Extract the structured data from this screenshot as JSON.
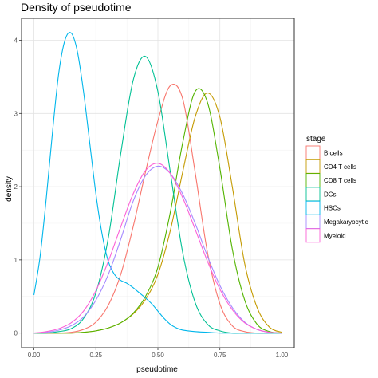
{
  "chart_data": {
    "type": "line",
    "title": "Density of pseudotime",
    "xlabel": "pseudotime",
    "ylabel": "density",
    "xlim": [
      -0.05,
      1.05
    ],
    "ylim": [
      -0.2,
      4.3
    ],
    "xticks": [
      0.0,
      0.25,
      0.5,
      0.75,
      1.0
    ],
    "xtick_labels": [
      "0.00",
      "0.25",
      "0.50",
      "0.75",
      "1.00"
    ],
    "yticks": [
      0,
      1,
      2,
      3,
      4
    ],
    "ytick_labels": [
      "0",
      "1",
      "2",
      "3",
      "4"
    ],
    "grid": true,
    "legend": {
      "title": "stage",
      "placement": "right"
    },
    "series": [
      {
        "name": "B cells",
        "color": "#F8766D",
        "x": [
          0.0,
          0.05,
          0.1,
          0.15,
          0.2,
          0.25,
          0.3,
          0.35,
          0.4,
          0.45,
          0.5,
          0.55,
          0.6,
          0.65,
          0.7,
          0.75,
          0.8,
          0.85,
          0.9,
          0.95,
          1.0
        ],
        "y": [
          0.0,
          0.0,
          0.0,
          0.01,
          0.05,
          0.15,
          0.38,
          0.8,
          1.45,
          2.2,
          2.9,
          3.38,
          3.2,
          2.2,
          1.1,
          0.4,
          0.1,
          0.02,
          0.0,
          0.0,
          0.0
        ]
      },
      {
        "name": "CD4 T cells",
        "color": "#C49A00",
        "x": [
          0.0,
          0.05,
          0.1,
          0.15,
          0.2,
          0.25,
          0.3,
          0.35,
          0.4,
          0.45,
          0.5,
          0.55,
          0.6,
          0.65,
          0.7,
          0.75,
          0.8,
          0.85,
          0.9,
          0.95,
          1.0
        ],
        "y": [
          0.0,
          0.0,
          0.0,
          0.0,
          0.01,
          0.03,
          0.07,
          0.14,
          0.26,
          0.46,
          0.8,
          1.4,
          2.2,
          2.95,
          3.28,
          2.95,
          2.0,
          0.95,
          0.35,
          0.08,
          0.01
        ]
      },
      {
        "name": "CD8 T cells",
        "color": "#53B400",
        "x": [
          0.0,
          0.05,
          0.1,
          0.15,
          0.2,
          0.25,
          0.3,
          0.35,
          0.4,
          0.45,
          0.5,
          0.55,
          0.6,
          0.65,
          0.7,
          0.75,
          0.8,
          0.85,
          0.9,
          0.95,
          1.0
        ],
        "y": [
          0.0,
          0.0,
          0.0,
          0.0,
          0.01,
          0.03,
          0.07,
          0.14,
          0.27,
          0.5,
          0.9,
          1.65,
          2.6,
          3.3,
          3.15,
          2.25,
          1.15,
          0.45,
          0.12,
          0.02,
          0.0
        ]
      },
      {
        "name": "DCs",
        "color": "#00C094",
        "x": [
          0.0,
          0.05,
          0.1,
          0.15,
          0.2,
          0.25,
          0.3,
          0.35,
          0.4,
          0.45,
          0.5,
          0.55,
          0.6,
          0.65,
          0.7,
          0.75,
          0.8,
          0.85,
          0.9,
          0.95,
          1.0
        ],
        "y": [
          0.0,
          0.0,
          0.02,
          0.06,
          0.2,
          0.55,
          1.3,
          2.45,
          3.45,
          3.78,
          3.3,
          2.2,
          1.1,
          0.42,
          0.12,
          0.03,
          0.0,
          0.0,
          0.0,
          0.0,
          0.0
        ]
      },
      {
        "name": "HSCs",
        "color": "#00B6EB",
        "x": [
          0.0,
          0.025,
          0.05,
          0.075,
          0.1,
          0.125,
          0.15,
          0.175,
          0.2,
          0.225,
          0.25,
          0.275,
          0.3,
          0.325,
          0.35,
          0.375,
          0.4,
          0.425,
          0.45,
          0.475,
          0.5,
          0.525,
          0.55,
          0.575,
          0.6,
          0.65,
          0.7,
          0.75,
          0.8,
          0.85,
          0.9,
          0.95,
          1.0
        ],
        "y": [
          0.52,
          1.05,
          1.85,
          2.75,
          3.55,
          4.0,
          4.1,
          3.85,
          3.3,
          2.6,
          1.9,
          1.35,
          0.98,
          0.8,
          0.72,
          0.68,
          0.62,
          0.55,
          0.48,
          0.4,
          0.3,
          0.2,
          0.12,
          0.07,
          0.04,
          0.02,
          0.01,
          0.0,
          0.0,
          0.0,
          0.0,
          0.0,
          0.0
        ]
      },
      {
        "name": "Megakaryocytic",
        "color": "#A58AFF",
        "x": [
          0.0,
          0.05,
          0.1,
          0.15,
          0.2,
          0.25,
          0.3,
          0.35,
          0.4,
          0.45,
          0.5,
          0.55,
          0.6,
          0.65,
          0.7,
          0.75,
          0.8,
          0.85,
          0.9,
          0.95,
          1.0
        ],
        "y": [
          0.0,
          0.01,
          0.04,
          0.1,
          0.22,
          0.45,
          0.8,
          1.28,
          1.8,
          2.15,
          2.28,
          2.18,
          1.9,
          1.5,
          1.05,
          0.65,
          0.35,
          0.15,
          0.05,
          0.01,
          0.0
        ]
      },
      {
        "name": "Myeloid",
        "color": "#FB61D7",
        "x": [
          0.0,
          0.05,
          0.1,
          0.15,
          0.2,
          0.25,
          0.3,
          0.35,
          0.4,
          0.45,
          0.5,
          0.55,
          0.6,
          0.65,
          0.7,
          0.75,
          0.8,
          0.85,
          0.9,
          0.95,
          1.0
        ],
        "y": [
          0.0,
          0.02,
          0.06,
          0.14,
          0.3,
          0.58,
          0.98,
          1.45,
          1.9,
          2.22,
          2.32,
          2.18,
          1.85,
          1.42,
          0.98,
          0.6,
          0.32,
          0.14,
          0.05,
          0.01,
          0.0
        ]
      }
    ]
  }
}
